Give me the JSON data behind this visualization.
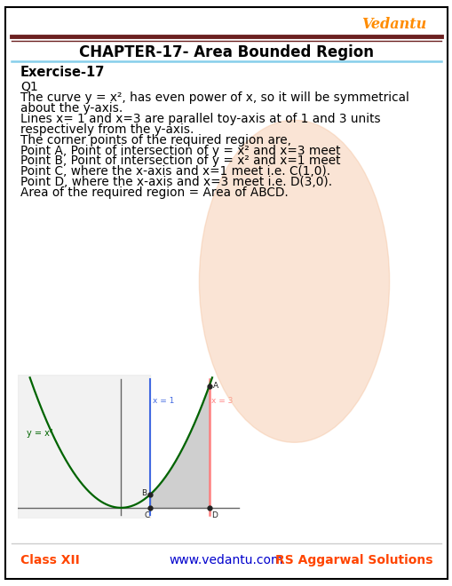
{
  "title": "CHAPTER-17- Area Bounded Region",
  "exercise": "Exercise-17",
  "question_label": "Q1",
  "body_lines": [
    "The curve y = x², has even power of x, so it will be symmetrical",
    "about the y-axis.",
    "Lines x= 1 and x=3 are parallel toy-axis at of 1 and 3 units",
    "respectively from the y-axis.",
    "The corner points of the required region are,",
    "Point A, Point of intersection of y = x² and x=3 meet",
    "Point B, Point of intersection of y = x² and x=1 meet",
    "Point C, where the x-axis and x=1 meet i.e. C(1,0).",
    "Point D, where the x-axis and x=3 meet i.e. D(3,0).",
    "Area of the required region = Area of ABCD."
  ],
  "curve_label": "y = x²",
  "x1_label": "x = 1",
  "x3_label": "x = 3",
  "bg_color": "#ffffff",
  "border_color": "#000000",
  "title_color": "#000000",
  "header_line_color_top": "#6B2020",
  "header_line_color_bot": "#87CEEB",
  "footer_text_left": "Class XII",
  "footer_text_mid": "www.vedantu.com",
  "footer_text_right": "RS Aggarwal Solutions",
  "footer_color_left": "#FF4500",
  "footer_color_mid": "#0000CD",
  "footer_color_right": "#FF4500",
  "vedantu_color": "#FF8C00",
  "watermark_color": "#F5C5A3",
  "curve_color": "#006400",
  "x1_line_color": "#4169E1",
  "x3_line_color": "#FF8080",
  "shaded_color": "#A9A9A9",
  "shaded_alpha": 0.55,
  "graph_bg_strip": "#DCDCDC"
}
